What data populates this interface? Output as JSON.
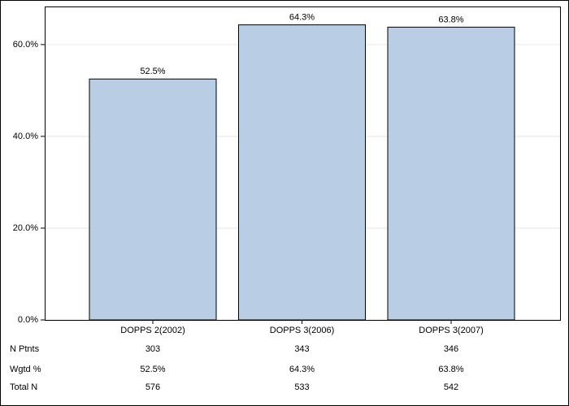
{
  "chart_data": {
    "type": "bar",
    "categories": [
      "DOPPS 2(2002)",
      "DOPPS 3(2006)",
      "DOPPS 3(2007)"
    ],
    "values": [
      52.5,
      64.3,
      63.8
    ],
    "value_labels": [
      "52.5%",
      "64.3%",
      "63.8%"
    ],
    "color": "#b9cde5",
    "ylim": [
      0,
      68.3
    ],
    "yticks": [
      {
        "value": 0,
        "label": "0.0%"
      },
      {
        "value": 20,
        "label": "20.0%"
      },
      {
        "value": 40,
        "label": "40.0%"
      },
      {
        "value": 60,
        "label": "60.0%"
      }
    ],
    "grid": true,
    "table": [
      {
        "label": "N Ptnts",
        "cells": [
          "303",
          "343",
          "346"
        ]
      },
      {
        "label": "Wgtd %",
        "cells": [
          "52.5%",
          "64.3%",
          "63.8%"
        ]
      },
      {
        "label": "Total N",
        "cells": [
          "576",
          "533",
          "542"
        ]
      }
    ]
  }
}
